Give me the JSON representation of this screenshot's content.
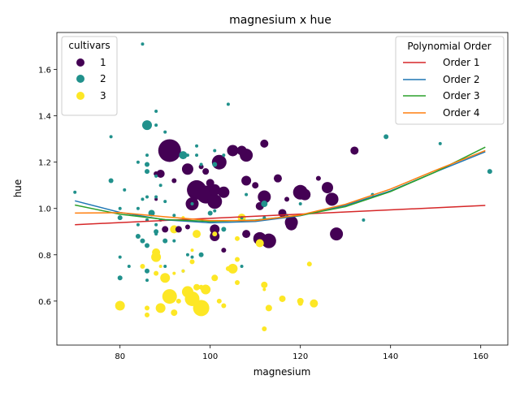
{
  "chart_data": {
    "type": "scatter",
    "title": "magnesium x hue",
    "xlabel": "magnesium",
    "ylabel": "hue",
    "xlim": [
      66,
      166
    ],
    "ylim": [
      0.41,
      1.76
    ],
    "xticks": [
      80,
      100,
      120,
      140,
      160
    ],
    "yticks": [
      0.6,
      0.8,
      1.0,
      1.2,
      1.4,
      1.6
    ],
    "grid": false,
    "legends": {
      "cultivars": {
        "title": "cultivars",
        "placement": "top-left",
        "entries": [
          {
            "label": "1",
            "color": "#440154"
          },
          {
            "label": "2",
            "color": "#21918c"
          },
          {
            "label": "3",
            "color": "#fde725"
          }
        ]
      },
      "fits": {
        "title": "Polynomial Order",
        "placement": "top-right",
        "entries": [
          {
            "label": "Order 1",
            "color": "#d62728"
          },
          {
            "label": "Order 2",
            "color": "#1f77b4"
          },
          {
            "label": "Order 3",
            "color": "#2ca02c"
          },
          {
            "label": "Order 4",
            "color": "#ff7f0e"
          }
        ]
      }
    },
    "series": [
      {
        "name": "1",
        "color": "#440154",
        "points": [
          [
            91,
            1.25,
            14
          ],
          [
            97,
            1.08,
            12
          ],
          [
            99,
            1.06,
            11
          ],
          [
            102,
            1.2,
            9
          ],
          [
            101,
            1.03,
            9
          ],
          [
            96,
            1.02,
            8
          ],
          [
            101,
            1.08,
            7
          ],
          [
            95,
            1.17,
            7
          ],
          [
            103,
            1.07,
            7
          ],
          [
            105,
            1.25,
            7
          ],
          [
            108,
            1.23,
            8
          ],
          [
            107,
            1.25,
            6
          ],
          [
            108,
            1.12,
            6
          ],
          [
            112,
            1.05,
            8
          ],
          [
            111,
            0.87,
            8
          ],
          [
            113,
            0.86,
            9
          ],
          [
            120,
            1.07,
            9
          ],
          [
            121,
            1.06,
            7
          ],
          [
            118,
            0.94,
            8
          ],
          [
            118,
            0.93,
            7
          ],
          [
            126,
            1.09,
            7
          ],
          [
            127,
            1.04,
            8
          ],
          [
            128,
            0.89,
            8
          ],
          [
            132,
            1.25,
            5
          ],
          [
            101,
            0.91,
            6
          ],
          [
            101,
            0.88,
            6
          ],
          [
            108,
            0.89,
            5
          ],
          [
            110,
            1.1,
            4
          ],
          [
            111,
            1.01,
            5
          ],
          [
            116,
            0.98,
            5
          ],
          [
            115,
            1.13,
            5
          ],
          [
            112,
            1.28,
            5
          ],
          [
            100,
            1.11,
            5
          ],
          [
            99,
            1.16,
            4
          ],
          [
            89,
            1.15,
            5
          ],
          [
            88,
            1.15,
            3
          ],
          [
            92,
            1.12,
            3
          ],
          [
            93,
            0.91,
            4
          ],
          [
            95,
            0.92,
            3
          ],
          [
            90,
            0.91,
            4
          ],
          [
            103,
            0.82,
            3
          ],
          [
            98,
            1.18,
            3
          ],
          [
            117,
            1.04,
            3
          ],
          [
            124,
            1.13,
            3
          ],
          [
            88,
            1.04,
            2
          ]
        ]
      },
      {
        "name": "2",
        "color": "#21918c",
        "points": [
          [
            86,
            1.36,
            6
          ],
          [
            94,
            1.23,
            5
          ],
          [
            87,
            0.98,
            4
          ],
          [
            112,
            1.02,
            4
          ],
          [
            78,
            1.31,
            2
          ],
          [
            88,
            1.42,
            2
          ],
          [
            85,
            1.71,
            2
          ],
          [
            104,
            1.45,
            2
          ],
          [
            86,
            1.23,
            2
          ],
          [
            84,
            1.2,
            2
          ],
          [
            86,
            1.19,
            3
          ],
          [
            86,
            1.16,
            3
          ],
          [
            88,
            1.14,
            2
          ],
          [
            90,
            1.33,
            2
          ],
          [
            88,
            1.36,
            2
          ],
          [
            97,
            1.27,
            2
          ],
          [
            101,
            1.25,
            2
          ],
          [
            95,
            1.23,
            2
          ],
          [
            97,
            1.23,
            2
          ],
          [
            98,
            1.19,
            2
          ],
          [
            101,
            1.19,
            3
          ],
          [
            103,
            1.23,
            2
          ],
          [
            78,
            1.12,
            3
          ],
          [
            70,
            1.07,
            2
          ],
          [
            81,
            1.08,
            2
          ],
          [
            84,
            1.0,
            2
          ],
          [
            80,
            1.0,
            2
          ],
          [
            85,
            1.04,
            2
          ],
          [
            86,
            1.05,
            2
          ],
          [
            89,
            1.1,
            2
          ],
          [
            88,
            1.05,
            2
          ],
          [
            90,
            1.03,
            2
          ],
          [
            92,
            0.97,
            2
          ],
          [
            96,
            1.02,
            2
          ],
          [
            100,
            0.98,
            3
          ],
          [
            101,
            0.99,
            2
          ],
          [
            107,
            0.96,
            2
          ],
          [
            112,
            0.96,
            2
          ],
          [
            108,
            1.06,
            2
          ],
          [
            117,
            0.97,
            2
          ],
          [
            120,
            1.02,
            2
          ],
          [
            80,
            0.96,
            3
          ],
          [
            84,
            0.93,
            2
          ],
          [
            86,
            0.95,
            2
          ],
          [
            88,
            0.93,
            2
          ],
          [
            88,
            0.9,
            3
          ],
          [
            88,
            0.89,
            2
          ],
          [
            89,
            0.95,
            2
          ],
          [
            86,
            0.95,
            2
          ],
          [
            85,
            0.86,
            3
          ],
          [
            86,
            0.84,
            3
          ],
          [
            84,
            0.88,
            3
          ],
          [
            90,
            0.86,
            3
          ],
          [
            92,
            0.86,
            2
          ],
          [
            95,
            0.8,
            2
          ],
          [
            96,
            0.79,
            2
          ],
          [
            98,
            0.8,
            3
          ],
          [
            103,
            0.91,
            3
          ],
          [
            107,
            0.75,
            2
          ],
          [
            80,
            0.79,
            2
          ],
          [
            82,
            0.75,
            2
          ],
          [
            86,
            0.73,
            3
          ],
          [
            80,
            0.7,
            3
          ],
          [
            86,
            0.69,
            2
          ],
          [
            90,
            0.75,
            2
          ],
          [
            94,
            0.73,
            2
          ],
          [
            139,
            1.31,
            3
          ],
          [
            151,
            1.28,
            2
          ],
          [
            162,
            1.16,
            3
          ],
          [
            134,
            0.95,
            2
          ],
          [
            136,
            1.06,
            2
          ]
        ]
      },
      {
        "name": "3",
        "color": "#fde725",
        "points": [
          [
            98,
            0.57,
            10
          ],
          [
            96,
            0.61,
            9
          ],
          [
            91,
            0.62,
            9
          ],
          [
            95,
            0.64,
            7
          ],
          [
            89,
            0.57,
            6
          ],
          [
            80,
            0.58,
            6
          ],
          [
            90,
            0.7,
            6
          ],
          [
            88,
            0.79,
            6
          ],
          [
            88,
            0.81,
            5
          ],
          [
            105,
            0.74,
            6
          ],
          [
            99,
            0.65,
            6
          ],
          [
            101,
            0.7,
            4
          ],
          [
            97,
            0.66,
            4
          ],
          [
            97,
            0.89,
            5
          ],
          [
            92,
            0.91,
            5
          ],
          [
            107,
            0.96,
            5
          ],
          [
            111,
            0.85,
            5
          ],
          [
            112,
            0.67,
            4
          ],
          [
            116,
            0.61,
            4
          ],
          [
            120,
            0.6,
            4
          ],
          [
            123,
            0.59,
            5
          ],
          [
            120,
            0.59,
            3
          ],
          [
            113,
            0.57,
            4
          ],
          [
            112,
            0.48,
            3
          ],
          [
            122,
            0.76,
            3
          ],
          [
            106,
            0.87,
            3
          ],
          [
            106,
            0.78,
            3
          ],
          [
            106,
            0.68,
            3
          ],
          [
            104,
            0.74,
            3
          ],
          [
            102,
            0.6,
            3
          ],
          [
            103,
            0.58,
            3
          ],
          [
            98,
            0.66,
            3
          ],
          [
            93,
            0.6,
            3
          ],
          [
            92,
            0.55,
            4
          ],
          [
            86,
            0.54,
            3
          ],
          [
            86,
            0.57,
            3
          ],
          [
            85,
            0.75,
            3
          ],
          [
            88,
            0.72,
            3
          ],
          [
            89,
            0.75,
            2
          ],
          [
            92,
            0.72,
            2
          ],
          [
            94,
            0.73,
            2
          ],
          [
            96,
            0.77,
            3
          ],
          [
            96,
            0.82,
            2
          ],
          [
            101,
            0.89,
            3
          ],
          [
            94,
            0.96,
            2
          ],
          [
            112,
            0.65,
            2
          ]
        ]
      }
    ],
    "fits": [
      {
        "name": "Order 1",
        "color": "#d62728",
        "x": [
          70,
          161
        ],
        "y": [
          0.93,
          1.013
        ]
      },
      {
        "name": "Order 2",
        "color": "#1f77b4",
        "x": [
          70,
          80,
          90,
          100,
          110,
          120,
          130,
          140,
          150,
          161
        ],
        "y": [
          1.033,
          0.983,
          0.951,
          0.938,
          0.944,
          0.969,
          1.013,
          1.076,
          1.158,
          1.245
        ]
      },
      {
        "name": "Order 3",
        "color": "#2ca02c",
        "x": [
          70,
          80,
          90,
          100,
          110,
          120,
          130,
          140,
          150,
          161
        ],
        "y": [
          1.015,
          0.975,
          0.952,
          0.944,
          0.95,
          0.97,
          1.008,
          1.073,
          1.158,
          1.265
        ]
      },
      {
        "name": "Order 4",
        "color": "#ff7f0e",
        "x": [
          70,
          80,
          90,
          100,
          110,
          120,
          130,
          140,
          150,
          161
        ],
        "y": [
          0.98,
          0.982,
          0.964,
          0.948,
          0.948,
          0.972,
          1.018,
          1.084,
          1.165,
          1.25
        ]
      }
    ]
  }
}
